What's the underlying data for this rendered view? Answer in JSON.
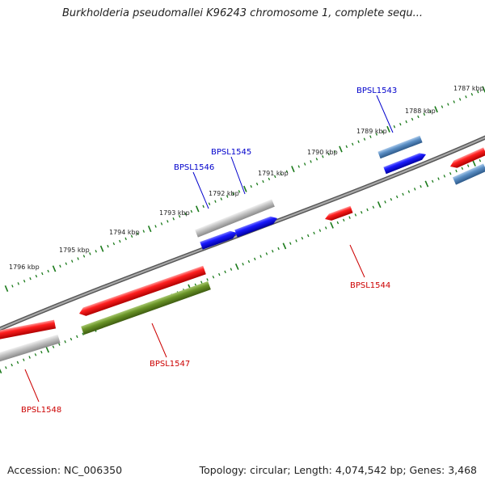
{
  "title": "Burkholderia pseudomallei K96243 chromosome 1, complete sequ...",
  "footer": {
    "accession": "Accession: NC_006350",
    "summary": "Topology: circular; Length: 4,074,542 bp; Genes: 3,468"
  },
  "colors": {
    "backbone": "#7a7a7a",
    "tick": "#1a7a1a",
    "red": "#e00000",
    "blue": "#1010e0",
    "steelblue": "#4a80b8",
    "gray": "#b8b8b8",
    "olive": "#5f8a1e",
    "label_blue": "#0000cc",
    "label_red": "#cc0000"
  },
  "scale_labels": [
    "1796 kbp",
    "1795 kbp",
    "1794 kbp",
    "1793 kbp",
    "1792 kbp",
    "1791 kbp",
    "1790 kbp",
    "1789 kbp",
    "1788 kbp",
    "1787 kbp"
  ],
  "genes": [
    {
      "name": "BPSL1543",
      "color": "blue"
    },
    {
      "name": "BPSL1544",
      "color": "red"
    },
    {
      "name": "BPSL1545",
      "color": "blue"
    },
    {
      "name": "BPSL1546",
      "color": "blue"
    },
    {
      "name": "BPSL1547",
      "color": "red"
    },
    {
      "name": "BPSL1548",
      "color": "red"
    }
  ]
}
